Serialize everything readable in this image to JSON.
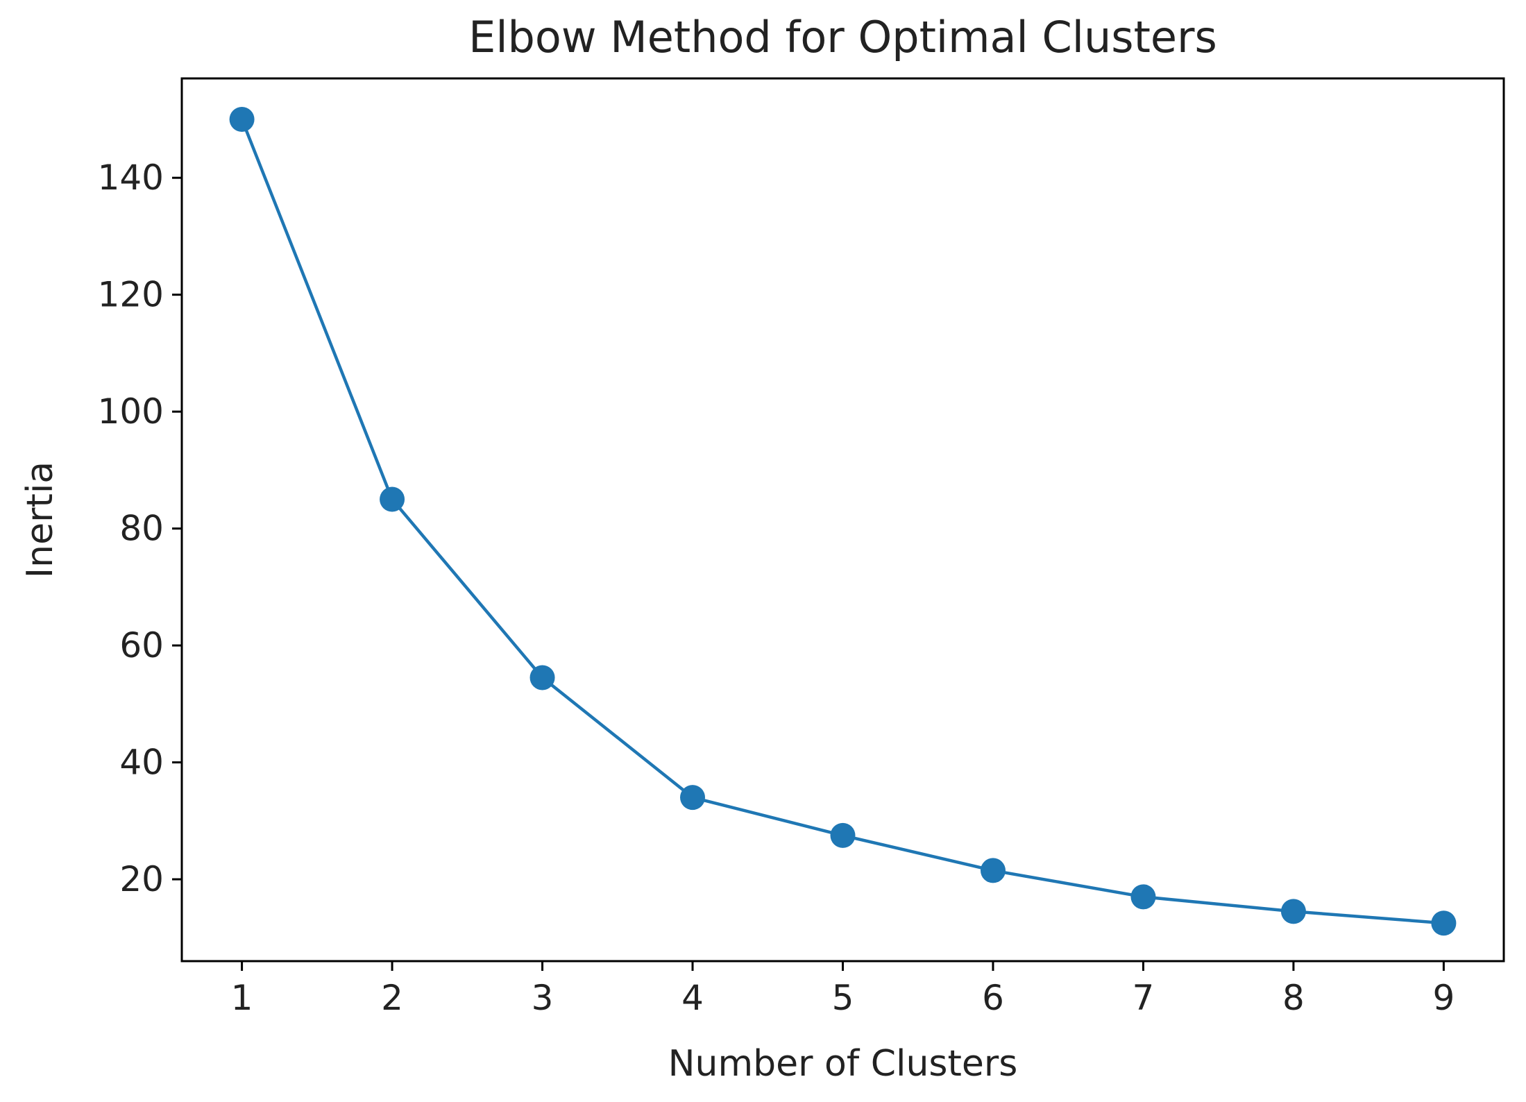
{
  "chart_data": {
    "type": "line",
    "title": "Elbow Method for Optimal Clusters",
    "xlabel": "Number of Clusters",
    "ylabel": "Inertia",
    "x": [
      1,
      2,
      3,
      4,
      5,
      6,
      7,
      8,
      9
    ],
    "series": [
      {
        "values": [
          150,
          85,
          54.5,
          34,
          27.5,
          21.5,
          17,
          14.5,
          12.5
        ],
        "color": "#1f77b4",
        "marker": "circle"
      }
    ],
    "xticks": [
      1,
      2,
      3,
      4,
      5,
      6,
      7,
      8,
      9
    ],
    "yticks": [
      20,
      40,
      60,
      80,
      100,
      120,
      140
    ],
    "xlim": [
      0.6,
      9.4
    ],
    "ylim": [
      6,
      157
    ],
    "grid": false,
    "legend": false
  }
}
